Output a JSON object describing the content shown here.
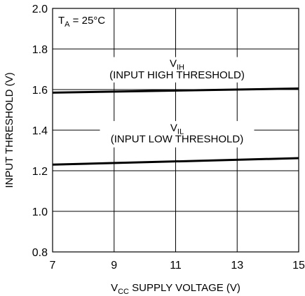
{
  "chart_data": {
    "type": "line",
    "x": [
      7,
      9,
      11,
      13,
      15
    ],
    "xlim": [
      7,
      15
    ],
    "ylim": [
      0.8,
      2.0
    ],
    "x_ticks": [
      "7",
      "9",
      "11",
      "13",
      "15"
    ],
    "y_ticks": [
      "0.8",
      "1.0",
      "1.2",
      "1.4",
      "1.6",
      "1.8",
      "2.0"
    ],
    "xlabel": {
      "main": "V",
      "sub": "CC",
      "rest": " SUPPLY VOLTAGE (V)"
    },
    "ylabel": "INPUT THRESHOLD (V)",
    "condition": {
      "main": "T",
      "sub": "A",
      "rest": " = 25°C"
    },
    "grid": true,
    "series": [
      {
        "name": "VIH",
        "label_main": "V",
        "label_sub": "IH",
        "description": "(INPUT HIGH THRESHOLD)",
        "points": [
          [
            7,
            1.585
          ],
          [
            15,
            1.605
          ]
        ]
      },
      {
        "name": "VIL",
        "label_main": "V",
        "label_sub": "IL",
        "description": "(INPUT LOW THRESHOLD)",
        "points": [
          [
            7,
            1.23
          ],
          [
            15,
            1.262
          ]
        ]
      }
    ],
    "line_color": "#000000"
  }
}
